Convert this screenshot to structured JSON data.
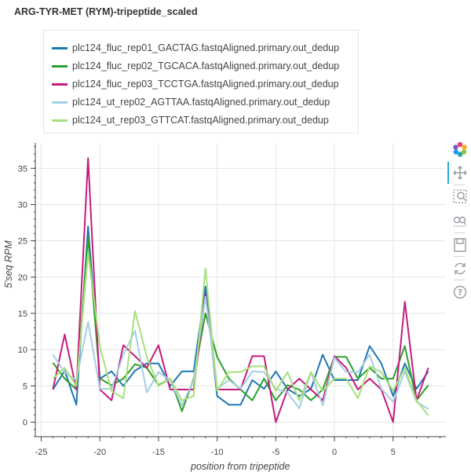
{
  "chart_data": {
    "type": "line",
    "title": "ARG-TYR-MET (RYM)-tripeptide_scaled",
    "xlabel": "position from tripeptide",
    "ylabel": "5'seq RPM",
    "xlim": [
      -25.5,
      9.5
    ],
    "ylim": [
      -2,
      38.5
    ],
    "x_ticks": [
      -25,
      -20,
      -15,
      -10,
      -5,
      0,
      5
    ],
    "y_ticks": [
      0,
      5,
      10,
      15,
      20,
      25,
      30,
      35
    ],
    "grid": true,
    "legend_position": "top-left",
    "x": [
      -24,
      -23,
      -22,
      -21,
      -20,
      -19,
      -18,
      -17,
      -16,
      -15,
      -14,
      -13,
      -12,
      -11,
      -10,
      -9,
      -8,
      -7,
      -6,
      -5,
      -4,
      -3,
      -2,
      -1,
      0,
      1,
      2,
      3,
      4,
      5,
      6,
      7,
      8
    ],
    "series": [
      {
        "name": "plc124_fluc_rep01_GACTAG.fastqAligned.primary.out_dedup",
        "color": "#1f77b4",
        "values": [
          4.5,
          7.1,
          2.4,
          27.0,
          6.0,
          7.0,
          5.0,
          7.1,
          8.1,
          8.1,
          5.0,
          7.0,
          7.0,
          18.7,
          3.6,
          2.4,
          2.4,
          5.8,
          4.6,
          7.0,
          4.6,
          3.6,
          4.6,
          9.3,
          5.8,
          5.8,
          5.8,
          10.5,
          8.1,
          3.6,
          8.1,
          4.6,
          7.0
        ]
      },
      {
        "name": "plc124_fluc_rep02_TGCACA.fastqAligned.primary.out_dedup",
        "color": "#2ca02c",
        "values": [
          8.2,
          6.0,
          4.5,
          25.5,
          6.0,
          5.1,
          6.0,
          8.0,
          7.5,
          5.1,
          6.0,
          1.5,
          6.0,
          15.0,
          9.0,
          6.0,
          4.5,
          3.0,
          6.0,
          3.0,
          5.1,
          4.5,
          3.0,
          4.5,
          9.0,
          9.0,
          6.0,
          7.5,
          6.0,
          6.0,
          10.5,
          3.0,
          5.1
        ]
      },
      {
        "name": "plc124_fluc_rep03_TCCTGA.fastqAligned.primary.out_dedup",
        "color": "#c51b7d",
        "values": [
          4.5,
          12.1,
          4.5,
          36.4,
          4.5,
          3.0,
          10.6,
          9.1,
          7.5,
          10.6,
          4.5,
          4.5,
          4.5,
          17.6,
          4.5,
          4.5,
          4.5,
          9.1,
          9.1,
          0.0,
          4.5,
          6.0,
          4.5,
          3.0,
          9.1,
          7.5,
          4.5,
          6.0,
          4.5,
          0.0,
          16.6,
          3.0,
          7.5
        ]
      },
      {
        "name": "plc124_ut_rep02_AGTTAA.fastqAligned.primary.out_dedup",
        "color": "#a6cee3",
        "values": [
          9.3,
          6.9,
          5.8,
          13.8,
          4.6,
          4.6,
          9.3,
          12.6,
          4.1,
          6.9,
          5.8,
          2.3,
          5.8,
          17.3,
          4.6,
          5.8,
          4.6,
          7.0,
          6.9,
          4.6,
          4.1,
          1.9,
          6.9,
          2.3,
          8.9,
          6.9,
          6.9,
          9.3,
          4.6,
          2.8,
          7.0,
          2.8,
          1.8
        ]
      },
      {
        "name": "plc124_ut_rep03_GTTCAT.fastqAligned.primary.out_dedup",
        "color": "#a6e07c",
        "values": [
          6.0,
          7.5,
          5.0,
          23.4,
          10.5,
          4.3,
          3.3,
          15.3,
          9.0,
          5.0,
          6.0,
          3.0,
          3.6,
          21.2,
          4.3,
          6.9,
          6.9,
          7.7,
          7.7,
          4.3,
          6.9,
          3.0,
          6.9,
          4.3,
          6.0,
          6.0,
          3.3,
          7.7,
          6.9,
          4.3,
          7.5,
          3.0,
          0.9
        ]
      }
    ]
  },
  "toolbar": {
    "tools": [
      "bokeh-logo-icon",
      "pan-icon",
      "box-zoom-icon",
      "wheel-zoom-icon",
      "save-icon",
      "reset-icon",
      "help-icon"
    ]
  }
}
